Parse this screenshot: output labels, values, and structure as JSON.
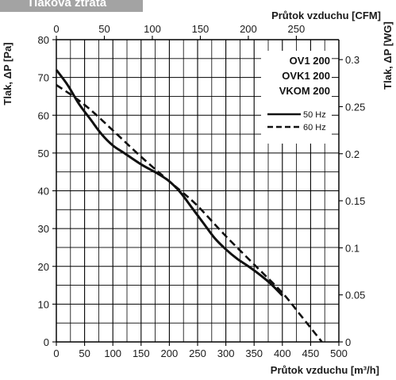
{
  "chart_data": {
    "type": "line",
    "title": "Tlaková ztráta",
    "xlabel": "Průtok vzduchu [m³/h]",
    "x2label": "Průtok vzduchu [CFM]",
    "ylabel": "Tlak, ΔP [Pa]",
    "y2label": "Tlak, ΔP [WG]",
    "xlim": [
      0,
      500
    ],
    "ylim": [
      0,
      80
    ],
    "x2lim": [
      0,
      294.3
    ],
    "y2lim": [
      0,
      0.3212
    ],
    "xticks": [
      "0",
      "50",
      "100",
      "150",
      "200",
      "250",
      "300",
      "350",
      "400",
      "450",
      "500"
    ],
    "yticks": [
      "0",
      "10",
      "20",
      "30",
      "40",
      "50",
      "60",
      "70",
      "80"
    ],
    "x2ticks": [
      "0",
      "50",
      "100",
      "150",
      "200",
      "250"
    ],
    "y2ticks": [
      "0",
      "0.05",
      "0.1",
      "0.15",
      "0.2",
      "0.25",
      "0.3"
    ],
    "grid": true,
    "legend_position": "top-right",
    "models": [
      "OV1 200",
      "OVK1 200",
      "VKOM 200"
    ],
    "series": [
      {
        "name": "50 Hz",
        "style": "solid",
        "x": [
          0,
          20,
          40,
          60,
          80,
          100,
          120,
          150,
          180,
          200,
          220,
          240,
          260,
          280,
          300,
          320,
          340,
          360,
          380,
          400
        ],
        "y": [
          72,
          68,
          63,
          59,
          55,
          52,
          50,
          47,
          44.5,
          42.5,
          39.5,
          35.5,
          31.5,
          27.5,
          24.5,
          22,
          20,
          17.8,
          15.3,
          12.3
        ]
      },
      {
        "name": "60 Hz",
        "style": "dashed",
        "x": [
          0,
          30,
          60,
          100,
          150,
          200,
          220,
          250,
          300,
          350,
          400,
          430,
          470
        ],
        "y": [
          68,
          65,
          61.5,
          56,
          49,
          42.5,
          40,
          36,
          28,
          20.5,
          13,
          7.5,
          0
        ]
      }
    ]
  }
}
